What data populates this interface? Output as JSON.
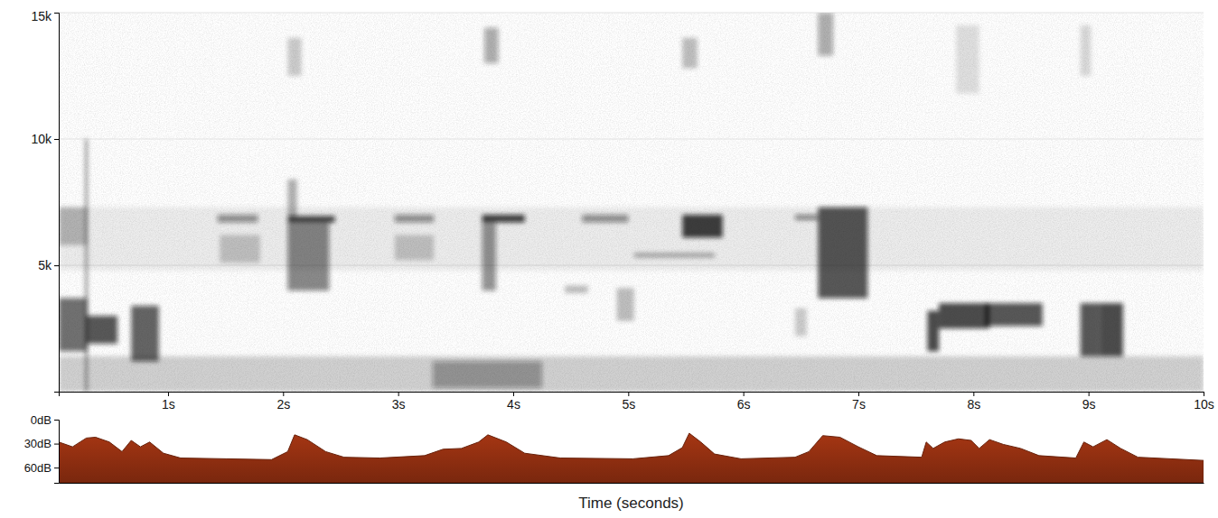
{
  "chart_data": [
    {
      "type": "spectrogram",
      "xlim": [
        0.05,
        10
      ],
      "xticks": [
        {
          "value": 1,
          "label": "1s"
        },
        {
          "value": 2,
          "label": "2s"
        },
        {
          "value": 3,
          "label": "3s"
        },
        {
          "value": 4,
          "label": "4s"
        },
        {
          "value": 5,
          "label": "5s"
        },
        {
          "value": 6,
          "label": "6s"
        },
        {
          "value": 7,
          "label": "7s"
        },
        {
          "value": 8,
          "label": "8s"
        },
        {
          "value": 9,
          "label": "9s"
        },
        {
          "value": 10,
          "label": "10s"
        }
      ],
      "ylim": [
        0,
        15000
      ],
      "yticks": [
        {
          "value": 5000,
          "label": "5k"
        },
        {
          "value": 10000,
          "label": "10k"
        },
        {
          "value": 15000,
          "label": "15k"
        }
      ],
      "grid": true,
      "color": "#111111",
      "zlim": [
        0,
        1
      ],
      "blobs": [
        {
          "t": [
            0.05,
            10
          ],
          "f": [
            0,
            1400
          ],
          "level": 0.18
        },
        {
          "t": [
            0.05,
            10
          ],
          "f": [
            4800,
            7300
          ],
          "level": 0.07
        },
        {
          "t": [
            0.05,
            0.3
          ],
          "f": [
            1600,
            3700
          ],
          "level": 0.6
        },
        {
          "t": [
            0.29,
            0.56
          ],
          "f": [
            1900,
            3000
          ],
          "level": 0.7
        },
        {
          "t": [
            0.68,
            0.92
          ],
          "f": [
            1200,
            3400
          ],
          "level": 0.65
        },
        {
          "t": [
            0.05,
            0.3
          ],
          "f": [
            5800,
            7300
          ],
          "level": 0.25
        },
        {
          "t": [
            0.28,
            0.3
          ],
          "f": [
            0,
            10000
          ],
          "level": 0.5
        },
        {
          "t": [
            1.43,
            1.78
          ],
          "f": [
            6700,
            7000
          ],
          "level": 0.45
        },
        {
          "t": [
            1.45,
            1.8
          ],
          "f": [
            5100,
            6200
          ],
          "level": 0.2
        },
        {
          "t": [
            2.04,
            2.45
          ],
          "f": [
            6700,
            6950
          ],
          "level": 0.8
        },
        {
          "t": [
            2.04,
            2.4
          ],
          "f": [
            4000,
            6700
          ],
          "level": 0.5
        },
        {
          "t": [
            2.04,
            2.12
          ],
          "f": [
            6900,
            8400
          ],
          "level": 0.3
        },
        {
          "t": [
            2.04,
            2.16
          ],
          "f": [
            12500,
            14000
          ],
          "level": 0.2
        },
        {
          "t": [
            2.97,
            3.31
          ],
          "f": [
            6700,
            7000
          ],
          "level": 0.45
        },
        {
          "t": [
            2.97,
            3.31
          ],
          "f": [
            5200,
            6200
          ],
          "level": 0.2
        },
        {
          "t": [
            3.73,
            4.1
          ],
          "f": [
            6700,
            7000
          ],
          "level": 0.8
        },
        {
          "t": [
            3.73,
            3.85
          ],
          "f": [
            4000,
            6700
          ],
          "level": 0.45
        },
        {
          "t": [
            3.75,
            3.87
          ],
          "f": [
            13000,
            14400
          ],
          "level": 0.35
        },
        {
          "t": [
            3.3,
            4.25
          ],
          "f": [
            150,
            1200
          ],
          "level": 0.35
        },
        {
          "t": [
            4.6,
            5.0
          ],
          "f": [
            6700,
            7000
          ],
          "level": 0.45
        },
        {
          "t": [
            4.45,
            4.65
          ],
          "f": [
            3900,
            4200
          ],
          "level": 0.25
        },
        {
          "t": [
            4.9,
            5.05
          ],
          "f": [
            2800,
            4100
          ],
          "level": 0.25
        },
        {
          "t": [
            5.47,
            5.82
          ],
          "f": [
            6100,
            7000
          ],
          "level": 0.8
        },
        {
          "t": [
            5.05,
            5.75
          ],
          "f": [
            5300,
            5500
          ],
          "level": 0.3
        },
        {
          "t": [
            5.47,
            5.6
          ],
          "f": [
            12800,
            14000
          ],
          "level": 0.25
        },
        {
          "t": [
            6.45,
            6.65
          ],
          "f": [
            6800,
            7000
          ],
          "level": 0.5
        },
        {
          "t": [
            6.65,
            7.08
          ],
          "f": [
            3700,
            7300
          ],
          "level": 0.7
        },
        {
          "t": [
            6.65,
            6.78
          ],
          "f": [
            13300,
            15000
          ],
          "level": 0.35
        },
        {
          "t": [
            6.45,
            6.55
          ],
          "f": [
            2200,
            3300
          ],
          "level": 0.2
        },
        {
          "t": [
            7.6,
            7.7
          ],
          "f": [
            1600,
            3200
          ],
          "level": 0.75
        },
        {
          "t": [
            7.7,
            8.14
          ],
          "f": [
            2500,
            3500
          ],
          "level": 0.75
        },
        {
          "t": [
            8.1,
            8.6
          ],
          "f": [
            2600,
            3500
          ],
          "level": 0.7
        },
        {
          "t": [
            7.85,
            8.05
          ],
          "f": [
            11800,
            14500
          ],
          "level": 0.12
        },
        {
          "t": [
            8.93,
            9.1
          ],
          "f": [
            1400,
            3500
          ],
          "level": 0.7
        },
        {
          "t": [
            9.1,
            9.3
          ],
          "f": [
            1400,
            3500
          ],
          "level": 0.75
        },
        {
          "t": [
            8.93,
            9.02
          ],
          "f": [
            12500,
            14500
          ],
          "level": 0.15
        }
      ]
    },
    {
      "type": "area",
      "x_label": "Time (seconds)",
      "xlim": [
        0.05,
        10
      ],
      "tick_labels": "y",
      "ylim": [
        79,
        0
      ],
      "yticks": [
        {
          "value": 0,
          "label": "0dB"
        },
        {
          "value": 30,
          "label": "30dB"
        },
        {
          "value": 60,
          "label": "60dB"
        }
      ],
      "color": "#8b2d10",
      "x": [
        0.05,
        0.17,
        0.29,
        0.37,
        0.49,
        0.6,
        0.68,
        0.76,
        0.84,
        0.96,
        1.11,
        1.51,
        1.9,
        2.04,
        2.1,
        2.21,
        2.37,
        2.53,
        2.84,
        3.23,
        3.39,
        3.55,
        3.7,
        3.78,
        3.94,
        4.1,
        4.41,
        5.04,
        5.35,
        5.47,
        5.53,
        5.63,
        5.75,
        5.98,
        6.45,
        6.57,
        6.69,
        6.84,
        7.0,
        7.16,
        7.55,
        7.59,
        7.65,
        7.75,
        7.87,
        7.98,
        8.05,
        8.14,
        8.26,
        8.41,
        8.57,
        8.89,
        8.96,
        9.04,
        9.16,
        9.28,
        9.43,
        10.0
      ],
      "values": [
        28,
        34,
        23,
        22,
        28,
        40,
        26,
        34,
        28,
        42,
        48,
        49,
        50,
        40,
        19,
        25,
        40,
        47,
        48,
        45,
        37,
        36,
        28,
        19,
        28,
        42,
        48,
        49,
        45,
        35,
        17,
        28,
        43,
        49,
        47,
        40,
        20,
        22,
        34,
        45,
        47,
        28,
        36,
        28,
        24,
        26,
        36,
        25,
        31,
        36,
        45,
        48,
        28,
        34,
        25,
        36,
        47,
        51
      ]
    }
  ]
}
